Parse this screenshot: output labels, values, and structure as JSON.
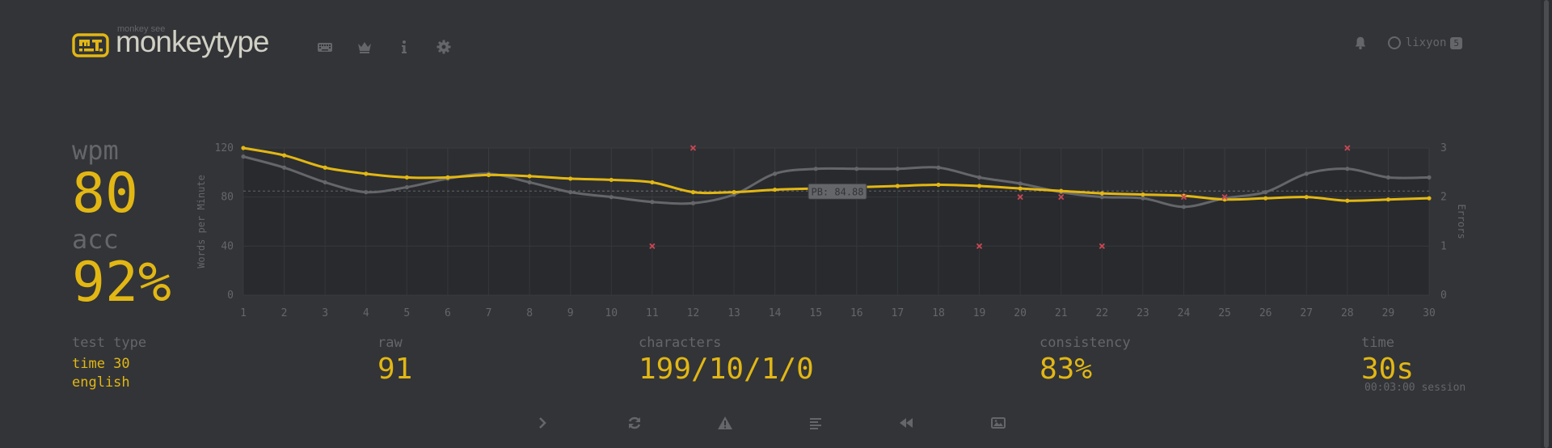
{
  "header": {
    "logo_sub": "monkey see",
    "logo_text": "monkeytype",
    "username": "lixyon",
    "level": "5",
    "nav": [
      {
        "name": "keyboard-icon"
      },
      {
        "name": "crown-icon"
      },
      {
        "name": "info-icon"
      },
      {
        "name": "gear-icon"
      }
    ]
  },
  "result": {
    "wpm_label": "wpm",
    "wpm": "80",
    "acc_label": "acc",
    "acc": "92%",
    "test_type_label": "test type",
    "test_type_mode": "time 30",
    "test_type_language": "english",
    "raw_label": "raw",
    "raw": "91",
    "characters_label": "characters",
    "characters": "199/10/1/0",
    "consistency_label": "consistency",
    "consistency": "83%",
    "time_label": "time",
    "time": "30s",
    "session": "00:03:00 session"
  },
  "colors": {
    "bg": "#323437",
    "accent": "#e2b714",
    "sub": "#646669",
    "error": "#ca4754",
    "text": "#d1d0c5"
  },
  "chart_data": {
    "type": "line",
    "x": [
      1,
      2,
      3,
      4,
      5,
      6,
      7,
      8,
      9,
      10,
      11,
      12,
      13,
      14,
      15,
      16,
      17,
      18,
      19,
      20,
      21,
      22,
      23,
      24,
      25,
      26,
      27,
      28,
      29,
      30
    ],
    "ylabel": "Words per Minute",
    "y2label": "Errors",
    "ylim": [
      0,
      120
    ],
    "y2lim": [
      0,
      3
    ],
    "yticks": [
      "0",
      "40",
      "80",
      "120"
    ],
    "y2ticks": [
      "0",
      "1",
      "2",
      "3"
    ],
    "pb_label": "PB: 84.88",
    "pb_value": 84.88,
    "series": [
      {
        "role": "wpm",
        "color": "#e2b714",
        "values": [
          120,
          114,
          104,
          99,
          96,
          96,
          98,
          97,
          95,
          94,
          92,
          84,
          84,
          86,
          87,
          88,
          89,
          90,
          89,
          87,
          85,
          83,
          82,
          81,
          78,
          79,
          80,
          77,
          78,
          79
        ]
      },
      {
        "role": "raw",
        "color": "#646669",
        "values": [
          113,
          104,
          92,
          84,
          88,
          95,
          99,
          92,
          84,
          80,
          76,
          75,
          82,
          99,
          103,
          103,
          103,
          104,
          96,
          91,
          84,
          80,
          79,
          72,
          79,
          84,
          99,
          103,
          96,
          96
        ]
      }
    ],
    "errors": [
      {
        "x": 11,
        "y": 1
      },
      {
        "x": 12,
        "y": 3
      },
      {
        "x": 19,
        "y": 1
      },
      {
        "x": 20,
        "y": 2
      },
      {
        "x": 21,
        "y": 2
      },
      {
        "x": 22,
        "y": 1
      },
      {
        "x": 24,
        "y": 2
      },
      {
        "x": 25,
        "y": 2
      },
      {
        "x": 28,
        "y": 3
      }
    ]
  },
  "actions": [
    {
      "name": "next-test-button",
      "icon": "chevron-right-icon"
    },
    {
      "name": "restart-test-button",
      "icon": "refresh-icon"
    },
    {
      "name": "practice-missed-button",
      "icon": "warning-icon"
    },
    {
      "name": "show-words-history-button",
      "icon": "align-left-icon"
    },
    {
      "name": "watch-replay-button",
      "icon": "backward-icon"
    },
    {
      "name": "save-screenshot-button",
      "icon": "image-icon"
    }
  ]
}
